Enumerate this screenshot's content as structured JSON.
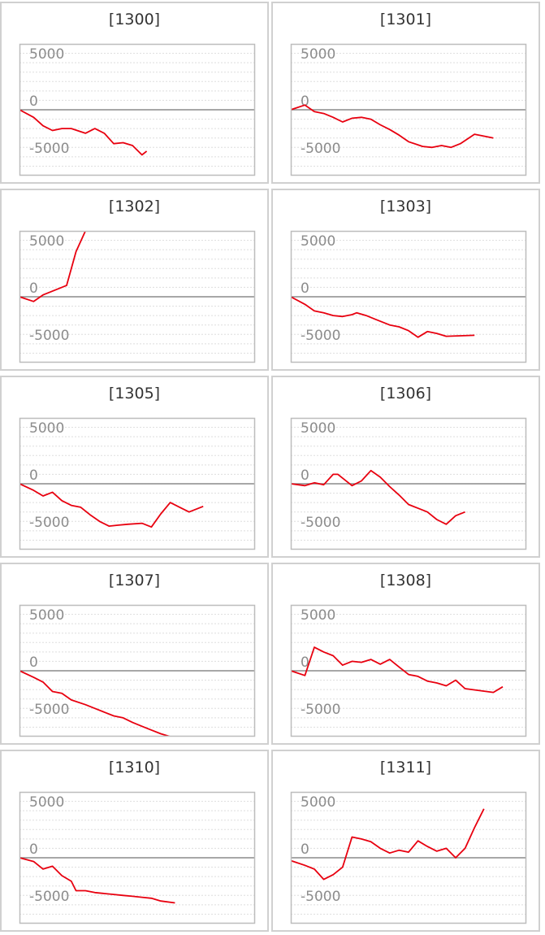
{
  "colors": {
    "line": "#e8000f",
    "zero_line": "#8a8a8a",
    "grid": "#dddddd",
    "frame": "#bdbdbd",
    "panel_border": "#d0d0d0",
    "tick_label": "#8c8c8c"
  },
  "chart_data": [
    {
      "type": "line",
      "title": "[1300]",
      "xlabel": "",
      "ylabel": "",
      "yticks": [
        5000,
        0,
        -5000
      ],
      "ylim": [
        -7000,
        7000
      ],
      "xlim": [
        0,
        25
      ],
      "grid": true,
      "x": [
        0,
        1.5,
        2.5,
        3.5,
        4.5,
        5.5,
        7,
        8,
        9,
        10,
        11,
        12,
        13,
        13.5
      ],
      "y": [
        0,
        -800,
        -1700,
        -2200,
        -2000,
        -2000,
        -2500,
        -2000,
        -2500,
        -3600,
        -3500,
        -3800,
        -4800,
        -4400
      ]
    },
    {
      "type": "line",
      "title": "[1301]",
      "xlabel": "",
      "ylabel": "",
      "yticks": [
        5000,
        0,
        -5000
      ],
      "ylim": [
        -7000,
        7000
      ],
      "xlim": [
        0,
        25
      ],
      "grid": true,
      "x": [
        0,
        1.5,
        2.5,
        3.5,
        4.5,
        5.5,
        6.5,
        7.5,
        8.5,
        9.5,
        10.5,
        11.5,
        12.5,
        14,
        15,
        16,
        17,
        18,
        19.5,
        21.5
      ],
      "y": [
        0,
        500,
        -200,
        -400,
        -800,
        -1300,
        -900,
        -800,
        -1000,
        -1600,
        -2100,
        -2700,
        -3400,
        -3900,
        -4000,
        -3800,
        -4000,
        -3600,
        -2600,
        -3000
      ]
    },
    {
      "type": "line",
      "title": "[1302]",
      "xlabel": "",
      "ylabel": "",
      "yticks": [
        5000,
        0,
        -5000
      ],
      "ylim": [
        -7000,
        7000
      ],
      "xlim": [
        0,
        25
      ],
      "grid": true,
      "x": [
        0,
        1.5,
        2.5,
        3.5,
        5,
        6,
        7,
        22.5
      ],
      "y": [
        0,
        -500,
        200,
        600,
        1200,
        4800,
        7000,
        7000
      ]
    },
    {
      "type": "line",
      "title": "[1303]",
      "xlabel": "",
      "ylabel": "",
      "yticks": [
        5000,
        0,
        -5000
      ],
      "ylim": [
        -7000,
        7000
      ],
      "xlim": [
        0,
        25
      ],
      "grid": true,
      "x": [
        0,
        1.5,
        2.5,
        3.5,
        4.5,
        5.5,
        6.5,
        7,
        8,
        9,
        10.5,
        11.5,
        12.5,
        13.5,
        14.5,
        15.5,
        16.5,
        19.5
      ],
      "y": [
        0,
        -800,
        -1500,
        -1700,
        -2000,
        -2100,
        -1900,
        -1700,
        -2000,
        -2400,
        -3000,
        -3200,
        -3600,
        -4300,
        -3700,
        -3900,
        -4200,
        -4100
      ]
    },
    {
      "type": "line",
      "title": "[1305]",
      "xlabel": "",
      "ylabel": "",
      "yticks": [
        5000,
        0,
        -5000
      ],
      "ylim": [
        -7000,
        7000
      ],
      "xlim": [
        0,
        25
      ],
      "grid": true,
      "x": [
        0,
        1.5,
        2.5,
        3.5,
        4.5,
        5.5,
        6.5,
        7.5,
        8.5,
        9.5,
        10.5,
        11.5,
        13,
        14,
        15,
        16,
        17,
        18,
        19.5
      ],
      "y": [
        0,
        -700,
        -1300,
        -900,
        -1800,
        -2300,
        -2500,
        -3300,
        -4000,
        -4500,
        -4400,
        -4300,
        -4200,
        -4600,
        -3200,
        -2000,
        -2500,
        -3000,
        -2400
      ]
    },
    {
      "type": "line",
      "title": "[1306]",
      "xlabel": "",
      "ylabel": "",
      "yticks": [
        5000,
        0,
        -5000
      ],
      "ylim": [
        -7000,
        7000
      ],
      "xlim": [
        0,
        25
      ],
      "grid": true,
      "x": [
        0,
        1.5,
        2.5,
        3.5,
        4.5,
        5,
        6.5,
        7.5,
        8.5,
        9.5,
        10.5,
        11.5,
        12.5,
        13.5,
        14.5,
        15.5,
        16.5,
        17.5,
        18.5
      ],
      "y": [
        0,
        -200,
        100,
        -100,
        1000,
        1000,
        -200,
        300,
        1400,
        700,
        -300,
        -1200,
        -2200,
        -2600,
        -3000,
        -3800,
        -4300,
        -3400,
        -3000
      ]
    },
    {
      "type": "line",
      "title": "[1307]",
      "xlabel": "",
      "ylabel": "",
      "yticks": [
        5000,
        0,
        -5000
      ],
      "ylim": [
        -7000,
        7000
      ],
      "xlim": [
        0,
        25
      ],
      "grid": true,
      "x": [
        0,
        1.5,
        2.5,
        3.5,
        4.5,
        5.5,
        7,
        8,
        9,
        10,
        11,
        12,
        13,
        14,
        15,
        16,
        17,
        17.5
      ],
      "y": [
        0,
        -700,
        -1200,
        -2200,
        -2400,
        -3100,
        -3600,
        -4000,
        -4400,
        -4800,
        -5000,
        -5500,
        -5900,
        -6300,
        -6700,
        -7000,
        -7000,
        -7000
      ]
    },
    {
      "type": "line",
      "title": "[1308]",
      "xlabel": "",
      "ylabel": "",
      "yticks": [
        5000,
        0,
        -5000
      ],
      "ylim": [
        -7000,
        7000
      ],
      "xlim": [
        0,
        25
      ],
      "grid": true,
      "x": [
        0,
        1.5,
        2.5,
        3.5,
        4.5,
        5.5,
        6.5,
        7.5,
        8.5,
        9.5,
        10.5,
        11.5,
        12.5,
        13.5,
        14.5,
        15.5,
        16.5,
        17.5,
        18.5,
        21.5,
        22.5
      ],
      "y": [
        0,
        -500,
        2500,
        2000,
        1600,
        600,
        1000,
        900,
        1200,
        700,
        1200,
        400,
        -400,
        -600,
        -1100,
        -1300,
        -1600,
        -1000,
        -1900,
        -2300,
        -1700
      ]
    },
    {
      "type": "line",
      "title": "[1310]",
      "xlabel": "",
      "ylabel": "",
      "yticks": [
        5000,
        0,
        -5000
      ],
      "ylim": [
        -7000,
        7000
      ],
      "xlim": [
        0,
        25
      ],
      "grid": true,
      "x": [
        0,
        1.5,
        2.5,
        3.5,
        4.5,
        5.5,
        6,
        7,
        8,
        9,
        10,
        11,
        12,
        13,
        14,
        15,
        16.5
      ],
      "y": [
        0,
        -400,
        -1200,
        -900,
        -1900,
        -2500,
        -3500,
        -3500,
        -3700,
        -3800,
        -3900,
        -4000,
        -4100,
        -4200,
        -4300,
        -4600,
        -4800
      ]
    },
    {
      "type": "line",
      "title": "[1311]",
      "xlabel": "",
      "ylabel": "",
      "yticks": [
        5000,
        0,
        -5000
      ],
      "ylim": [
        -7000,
        7000
      ],
      "xlim": [
        0,
        25
      ],
      "grid": true,
      "x": [
        0,
        1.5,
        2.5,
        3.5,
        4.5,
        5.5,
        6.5,
        7.5,
        8.5,
        9.5,
        10.5,
        11.5,
        12.5,
        13.5,
        14.5,
        15.5,
        16.5,
        17.5,
        18.5,
        19.5,
        20.5
      ],
      "y": [
        -300,
        -800,
        -1200,
        -2300,
        -1800,
        -1000,
        2200,
        2000,
        1700,
        1000,
        500,
        800,
        600,
        1800,
        1200,
        700,
        1000,
        0,
        1000,
        3200,
        5200
      ]
    }
  ]
}
